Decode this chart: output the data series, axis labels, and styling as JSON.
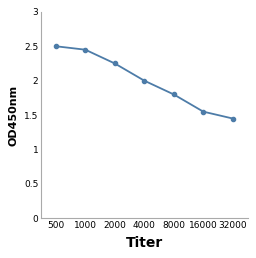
{
  "x_values": [
    500,
    1000,
    2000,
    4000,
    8000,
    16000,
    32000
  ],
  "y_values": [
    2.5,
    2.45,
    2.25,
    2.0,
    1.8,
    1.55,
    1.45
  ],
  "x_label": "Titer",
  "y_label": "OD450nm",
  "x_ticklabels": [
    "500",
    "1000",
    "2000",
    "4000",
    "8000",
    "16000",
    "32000"
  ],
  "ylim": [
    0,
    3
  ],
  "yticks": [
    0,
    0.5,
    1,
    1.5,
    2,
    2.5,
    3
  ],
  "line_color": "#4d7ca8",
  "marker": "o",
  "marker_size": 3,
  "line_width": 1.3,
  "background_color": "#ffffff",
  "plot_bg_color": "#ffffff",
  "x_label_fontsize": 10,
  "y_label_fontsize": 8,
  "tick_fontsize": 6.5
}
